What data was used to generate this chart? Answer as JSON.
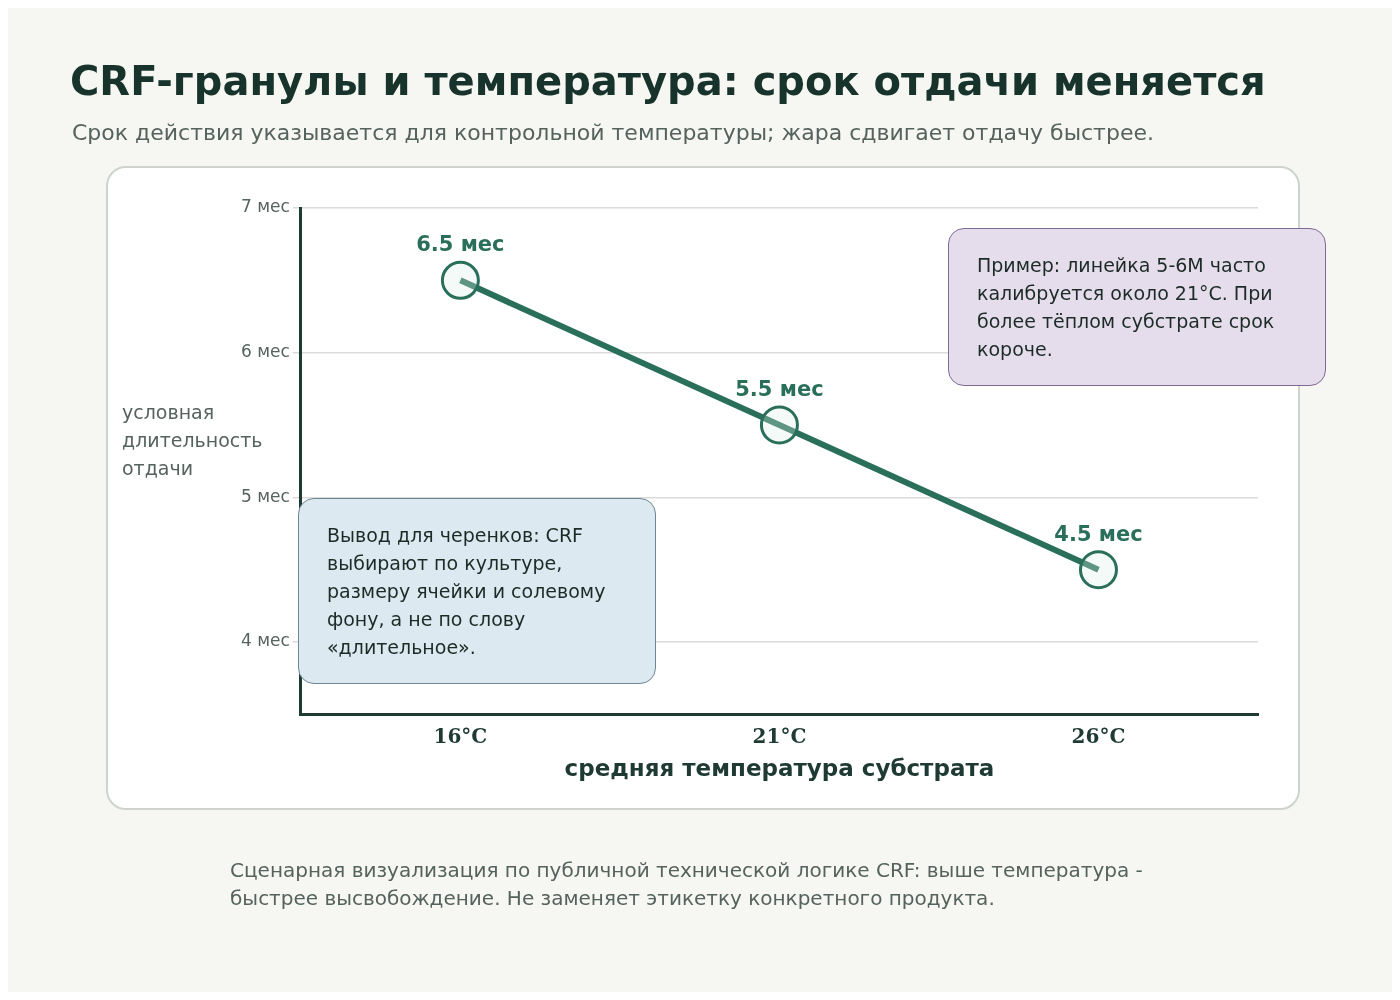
{
  "chart_data": {
    "type": "line",
    "title": "CRF-гранулы и температура: срок отдачи меняется",
    "subtitle": "Срок действия указывается для контрольной температуры; жара сдвигает отдачу быстрее.",
    "xlabel": "средняя температура субстрата",
    "ylabel": "условная длительность отдачи",
    "categories": [
      "16°C",
      "21°C",
      "26°C"
    ],
    "values": [
      6.5,
      5.5,
      4.5
    ],
    "color": "#2a6f5a",
    "value_labels": [
      "6.5 мес",
      "5.5 мес",
      "4.5 мес"
    ],
    "ylim": [
      3.5,
      7
    ],
    "yticks": [
      {
        "value": 4,
        "label": "4 мес"
      },
      {
        "value": 5,
        "label": "5 мес"
      },
      {
        "value": 6,
        "label": "6 мес"
      },
      {
        "value": 7,
        "label": "7 мес"
      }
    ],
    "grid": "y",
    "marker": "circle",
    "line_style": "solid",
    "legend": false,
    "annotations": [
      "Вывод для черенков: CRF выбирают по культуре, размеру ячейки и солевому фону, а не по слову «длительное».",
      "Пример: линейка 5-6M часто калибруется около 21°C. При более тёплом субстрате срок короче.",
      "Сценарная визуализация по публичной технической логике CRF: выше температура - быстрее высвобождение. Не заменяет этикетку конкретного продукта."
    ]
  }
}
